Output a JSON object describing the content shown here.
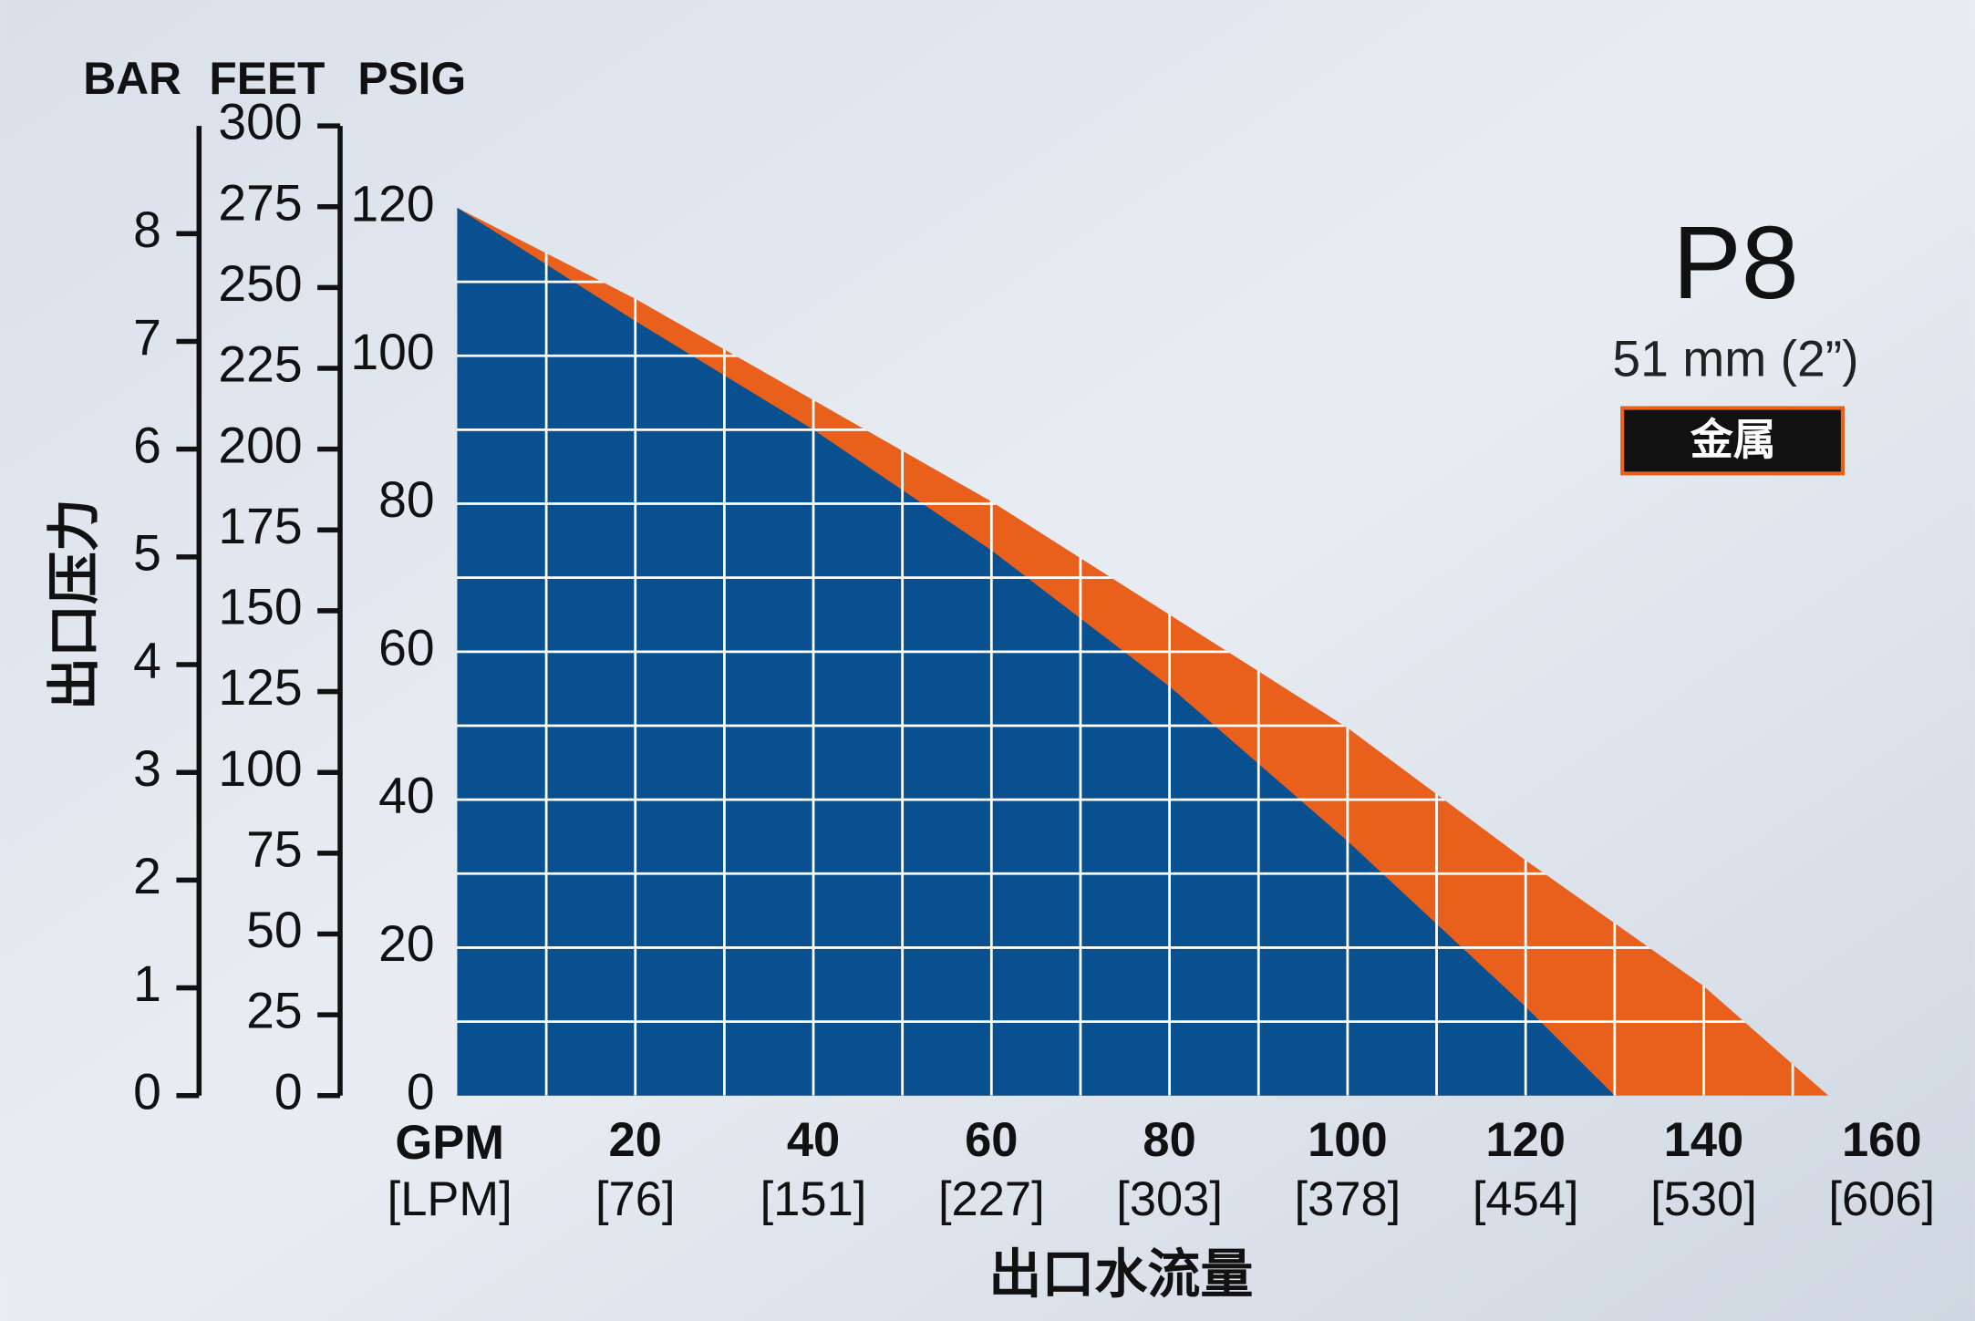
{
  "chart_data": {
    "type": "area",
    "title": "P8",
    "subtitle": "51 mm (2”)",
    "badge": "金属",
    "y_label": "出口压力",
    "x_label": "出口水流量",
    "x_unit": "GPM",
    "x_unit_secondary": "[LPM]",
    "y_unit": "PSIG",
    "xlim": [
      0,
      160
    ],
    "xticks": [
      20,
      40,
      60,
      80,
      100,
      120,
      140,
      160
    ],
    "xtick_secondary_labels": [
      "[76]",
      "[151]",
      "[227]",
      "[303]",
      "[378]",
      "[454]",
      "[530]",
      "[606]"
    ],
    "x_grid": [
      10,
      20,
      30,
      40,
      50,
      60,
      70,
      80,
      90,
      100,
      110,
      120,
      130,
      140,
      150
    ],
    "ylim": [
      0,
      120
    ],
    "yticks": [
      0,
      20,
      40,
      60,
      80,
      100,
      120
    ],
    "y_grid": [
      10,
      20,
      30,
      40,
      50,
      60,
      70,
      80,
      90,
      100,
      110
    ],
    "grid": true,
    "extra_axes": [
      {
        "name": "BAR",
        "lim": [
          0,
          9
        ],
        "ticks": [
          0,
          1,
          2,
          3,
          4,
          5,
          6,
          7,
          8
        ]
      },
      {
        "name": "FEET",
        "lim": [
          0,
          300
        ],
        "ticks": [
          0,
          25,
          50,
          75,
          100,
          125,
          150,
          175,
          200,
          225,
          250,
          275,
          300
        ]
      }
    ],
    "series": [
      {
        "color": "#e8601c",
        "x": [
          0,
          20,
          40,
          60,
          80,
          100,
          120,
          140,
          154
        ],
        "values": [
          120,
          107.7,
          94,
          80.3,
          65,
          49.7,
          31.8,
          14.8,
          0
        ]
      },
      {
        "color": "#08508f",
        "x": [
          0,
          20,
          40,
          60,
          80,
          100,
          120,
          130
        ],
        "values": [
          120,
          104.7,
          90,
          73.7,
          55.3,
          34.4,
          12,
          0
        ]
      }
    ]
  }
}
